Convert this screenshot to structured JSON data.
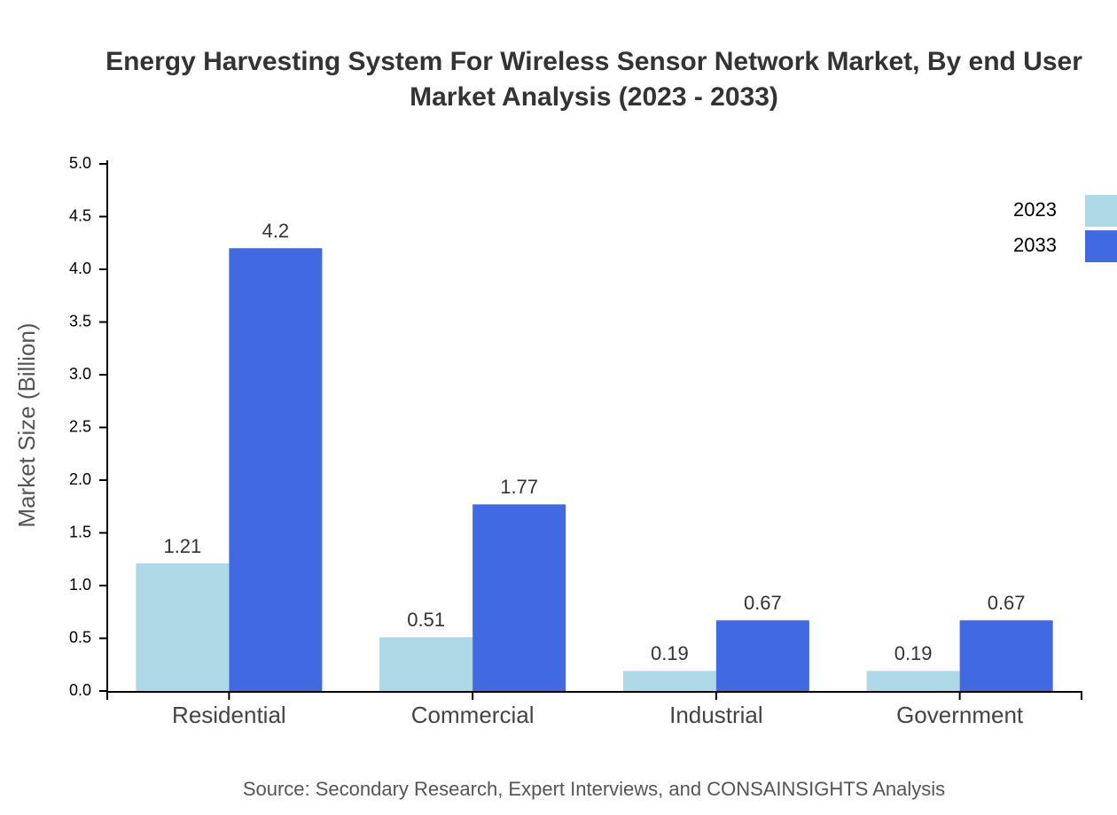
{
  "chart_data": {
    "type": "bar",
    "title": "Energy Harvesting System For Wireless Sensor Network Market, By end User Market Analysis (2023 - 2033)",
    "y_label": "Market Size (Billion)",
    "source": "Source: Secondary Research, Expert Interviews, and CONSAINSIGHTS Analysis",
    "categories": [
      "Residential",
      "Commercial",
      "Industrial",
      "Government"
    ],
    "series": [
      {
        "name": "2023",
        "color": "#add8e6",
        "values": [
          1.21,
          0.51,
          0.19,
          0.19
        ]
      },
      {
        "name": "2033",
        "color": "#4169e1",
        "values": [
          4.2,
          1.77,
          0.67,
          0.67
        ]
      }
    ],
    "ylim": [
      0,
      5
    ],
    "yticks": [
      {
        "value": 0,
        "label": "0.0"
      },
      0.5,
      {
        "value": 1,
        "label": "1.0"
      },
      1.5,
      {
        "value": 2,
        "label": "2.0"
      },
      2.5,
      {
        "value": 3,
        "label": "3.0"
      },
      3.5,
      {
        "value": 4,
        "label": "4.0"
      },
      4.5,
      {
        "value": 5,
        "label": "5.0"
      }
    ],
    "legend": "top-right"
  }
}
